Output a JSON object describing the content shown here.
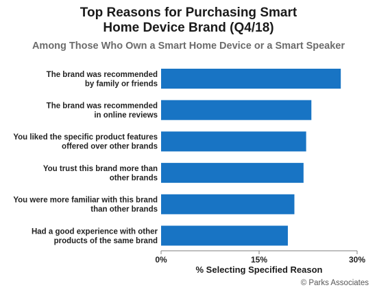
{
  "header": {
    "title_line1": "Top Reasons for Purchasing Smart",
    "title_line2": "Home Device Brand (Q4/18)",
    "subtitle": "Among Those Who Own a Smart Home Device or a Smart Speaker"
  },
  "colors": {
    "bar": "#1874c4",
    "axis": "#7f7f7f"
  },
  "chart_data": {
    "type": "bar",
    "orientation": "horizontal",
    "title": "Top Reasons for Purchasing Smart Home Device Brand (Q4/18)",
    "subtitle": "Among Those Who Own a Smart Home Device or a Smart Speaker",
    "categories": [
      [
        "The brand was recommended",
        "by family or friends"
      ],
      [
        "The brand was recommended",
        "in online reviews"
      ],
      [
        "You liked the specific product features",
        "offered over other brands"
      ],
      [
        "You trust this brand more than",
        "other brands"
      ],
      [
        "You were more familiar with this brand",
        "than other brands"
      ],
      [
        "Had a good experience with other",
        "products of the same brand"
      ]
    ],
    "values": [
      27.5,
      23.0,
      22.2,
      21.8,
      20.4,
      19.4
    ],
    "xlim": [
      0,
      30
    ],
    "xticks": [
      0,
      15,
      30
    ],
    "xtick_labels": [
      "0%",
      "15%",
      "30%"
    ],
    "xlabel": "% Selecting Specified Reason",
    "ylabel": "",
    "grid": false,
    "legend": "none"
  },
  "footer": {
    "source": "© Parks Associates"
  }
}
